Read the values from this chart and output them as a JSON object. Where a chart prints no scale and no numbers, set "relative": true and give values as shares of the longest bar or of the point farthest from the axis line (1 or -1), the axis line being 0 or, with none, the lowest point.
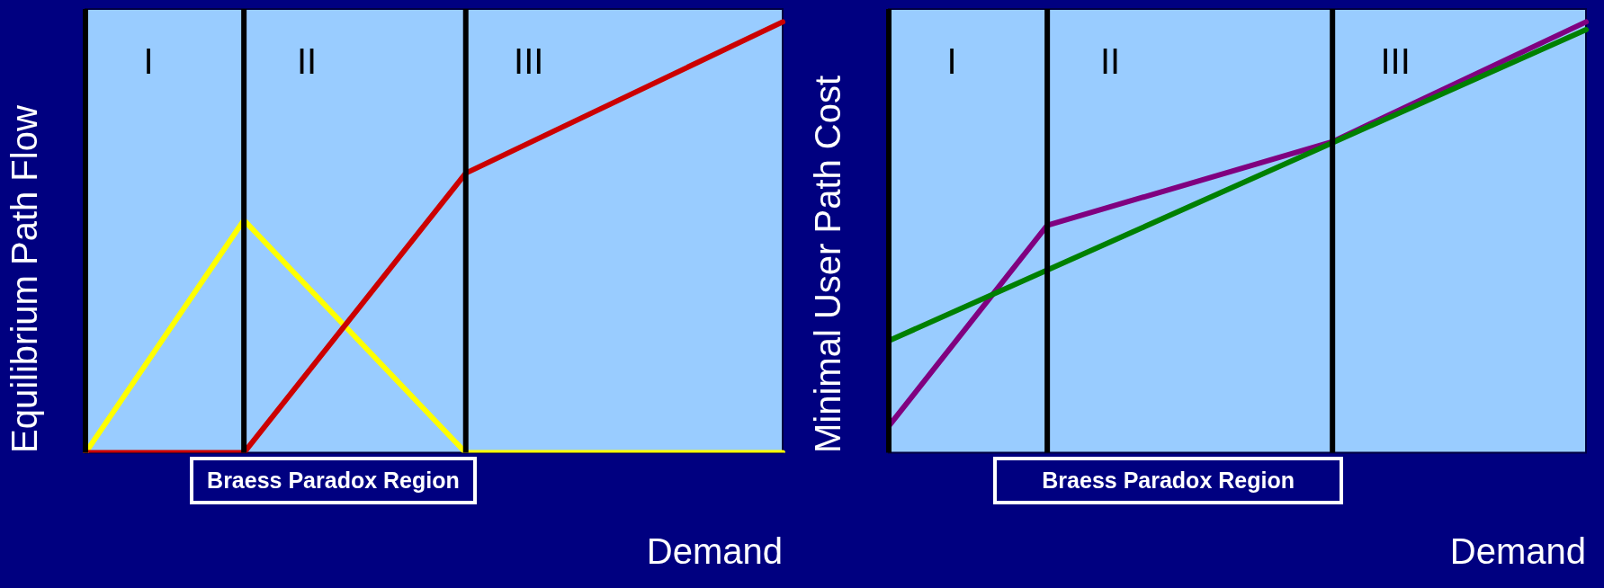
{
  "chart_data": [
    {
      "type": "line",
      "relative": true,
      "ylabel": "Equilibrium Path Flow",
      "xlabel": "Demand",
      "marker": "none",
      "categories": [
        null,
        null,
        null,
        null,
        null,
        null,
        null,
        null,
        null,
        null,
        null,
        null,
        null,
        null,
        null,
        null,
        null,
        null,
        null,
        null,
        null,
        null,
        null
      ],
      "series": [
        {
          "color": "#cc0000",
          "values": [
            0,
            null,
            null,
            null,
            null,
            0,
            null,
            null,
            null,
            null,
            null,
            null,
            0.649,
            null,
            null,
            null,
            null,
            null,
            null,
            null,
            null,
            null,
            1
          ]
        },
        {
          "color": "#ffff00",
          "values": [
            0,
            null,
            null,
            null,
            null,
            0.54,
            null,
            null,
            null,
            null,
            null,
            null,
            0,
            null,
            null,
            null,
            null,
            null,
            null,
            null,
            null,
            null,
            0
          ]
        }
      ],
      "annotations": [
        "I",
        "II",
        "III",
        "Braess Paradox Region"
      ]
    },
    {
      "type": "line",
      "relative": true,
      "ylabel": "Minimal User Path Cost",
      "xlabel": "Demand",
      "marker": "none",
      "categories": [
        null,
        null,
        null,
        null,
        null,
        null,
        null,
        null,
        null,
        null,
        null,
        null,
        null,
        null,
        null,
        null,
        null,
        null,
        null,
        null,
        null,
        null,
        null
      ],
      "series": [
        {
          "color": "#008000",
          "values": [
            0.26,
            null,
            null,
            null,
            null,
            null,
            null,
            null,
            null,
            null,
            null,
            null,
            null,
            null,
            null,
            null,
            null,
            null,
            null,
            null,
            null,
            null,
            0.982
          ]
        },
        {
          "color": "#800080",
          "values": [
            0.062,
            null,
            null,
            null,
            null,
            0.528,
            null,
            null,
            null,
            null,
            null,
            null,
            null,
            null,
            0.722,
            null,
            null,
            null,
            null,
            null,
            null,
            null,
            1
          ]
        }
      ],
      "annotations": [
        "I",
        "II",
        "III",
        "Braess Paradox Region"
      ]
    }
  ]
}
